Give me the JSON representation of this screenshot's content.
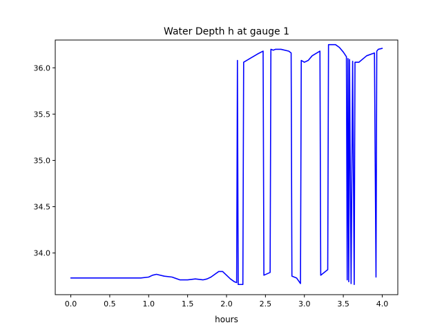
{
  "chart_data": {
    "type": "line",
    "title": "Water Depth h at gauge 1",
    "xlabel": "hours",
    "ylabel": "",
    "xlim": [
      -0.2,
      4.2
    ],
    "ylim": [
      33.55,
      36.3
    ],
    "xticks": [
      0.0,
      0.5,
      1.0,
      1.5,
      2.0,
      2.5,
      3.0,
      3.5,
      4.0
    ],
    "xtick_labels": [
      "0.0",
      "0.5",
      "1.0",
      "1.5",
      "2.0",
      "2.5",
      "3.0",
      "3.5",
      "4.0"
    ],
    "yticks": [
      34.0,
      34.5,
      35.0,
      35.5,
      36.0
    ],
    "ytick_labels": [
      "34.0",
      "34.5",
      "35.0",
      "35.5",
      "36.0"
    ],
    "grid": false,
    "series": [
      {
        "color": "#0000ff",
        "x": [
          0.0,
          0.5,
          0.9,
          1.0,
          1.05,
          1.1,
          1.2,
          1.3,
          1.4,
          1.5,
          1.6,
          1.7,
          1.75,
          1.8,
          1.9,
          1.95,
          2.0,
          2.05,
          2.1,
          2.13,
          2.14,
          2.15,
          2.16,
          2.2,
          2.21,
          2.22,
          2.3,
          2.4,
          2.47,
          2.48,
          2.56,
          2.57,
          2.6,
          2.63,
          2.7,
          2.8,
          2.83,
          2.84,
          2.9,
          2.95,
          2.96,
          3.0,
          3.05,
          3.1,
          3.2,
          3.21,
          3.3,
          3.31,
          3.4,
          3.45,
          3.5,
          3.54,
          3.55,
          3.56,
          3.57,
          3.58,
          3.6,
          3.62,
          3.64,
          3.65,
          3.7,
          3.8,
          3.9,
          3.92,
          3.93,
          3.95,
          4.0
        ],
        "y": [
          33.73,
          33.73,
          33.73,
          33.74,
          33.76,
          33.77,
          33.75,
          33.74,
          33.71,
          33.71,
          33.72,
          33.71,
          33.72,
          33.74,
          33.8,
          33.8,
          33.76,
          33.72,
          33.69,
          33.68,
          36.08,
          33.66,
          33.66,
          33.66,
          33.66,
          36.06,
          36.1,
          36.15,
          36.18,
          33.76,
          33.79,
          36.2,
          36.19,
          36.2,
          36.2,
          36.18,
          36.16,
          33.75,
          33.73,
          33.67,
          36.08,
          36.06,
          36.08,
          36.13,
          36.18,
          33.76,
          33.82,
          36.25,
          36.25,
          36.22,
          36.17,
          36.12,
          33.71,
          36.1,
          33.69,
          36.09,
          33.67,
          36.07,
          33.66,
          36.06,
          36.06,
          36.13,
          36.16,
          33.74,
          36.18,
          36.2,
          36.21
        ]
      }
    ]
  }
}
